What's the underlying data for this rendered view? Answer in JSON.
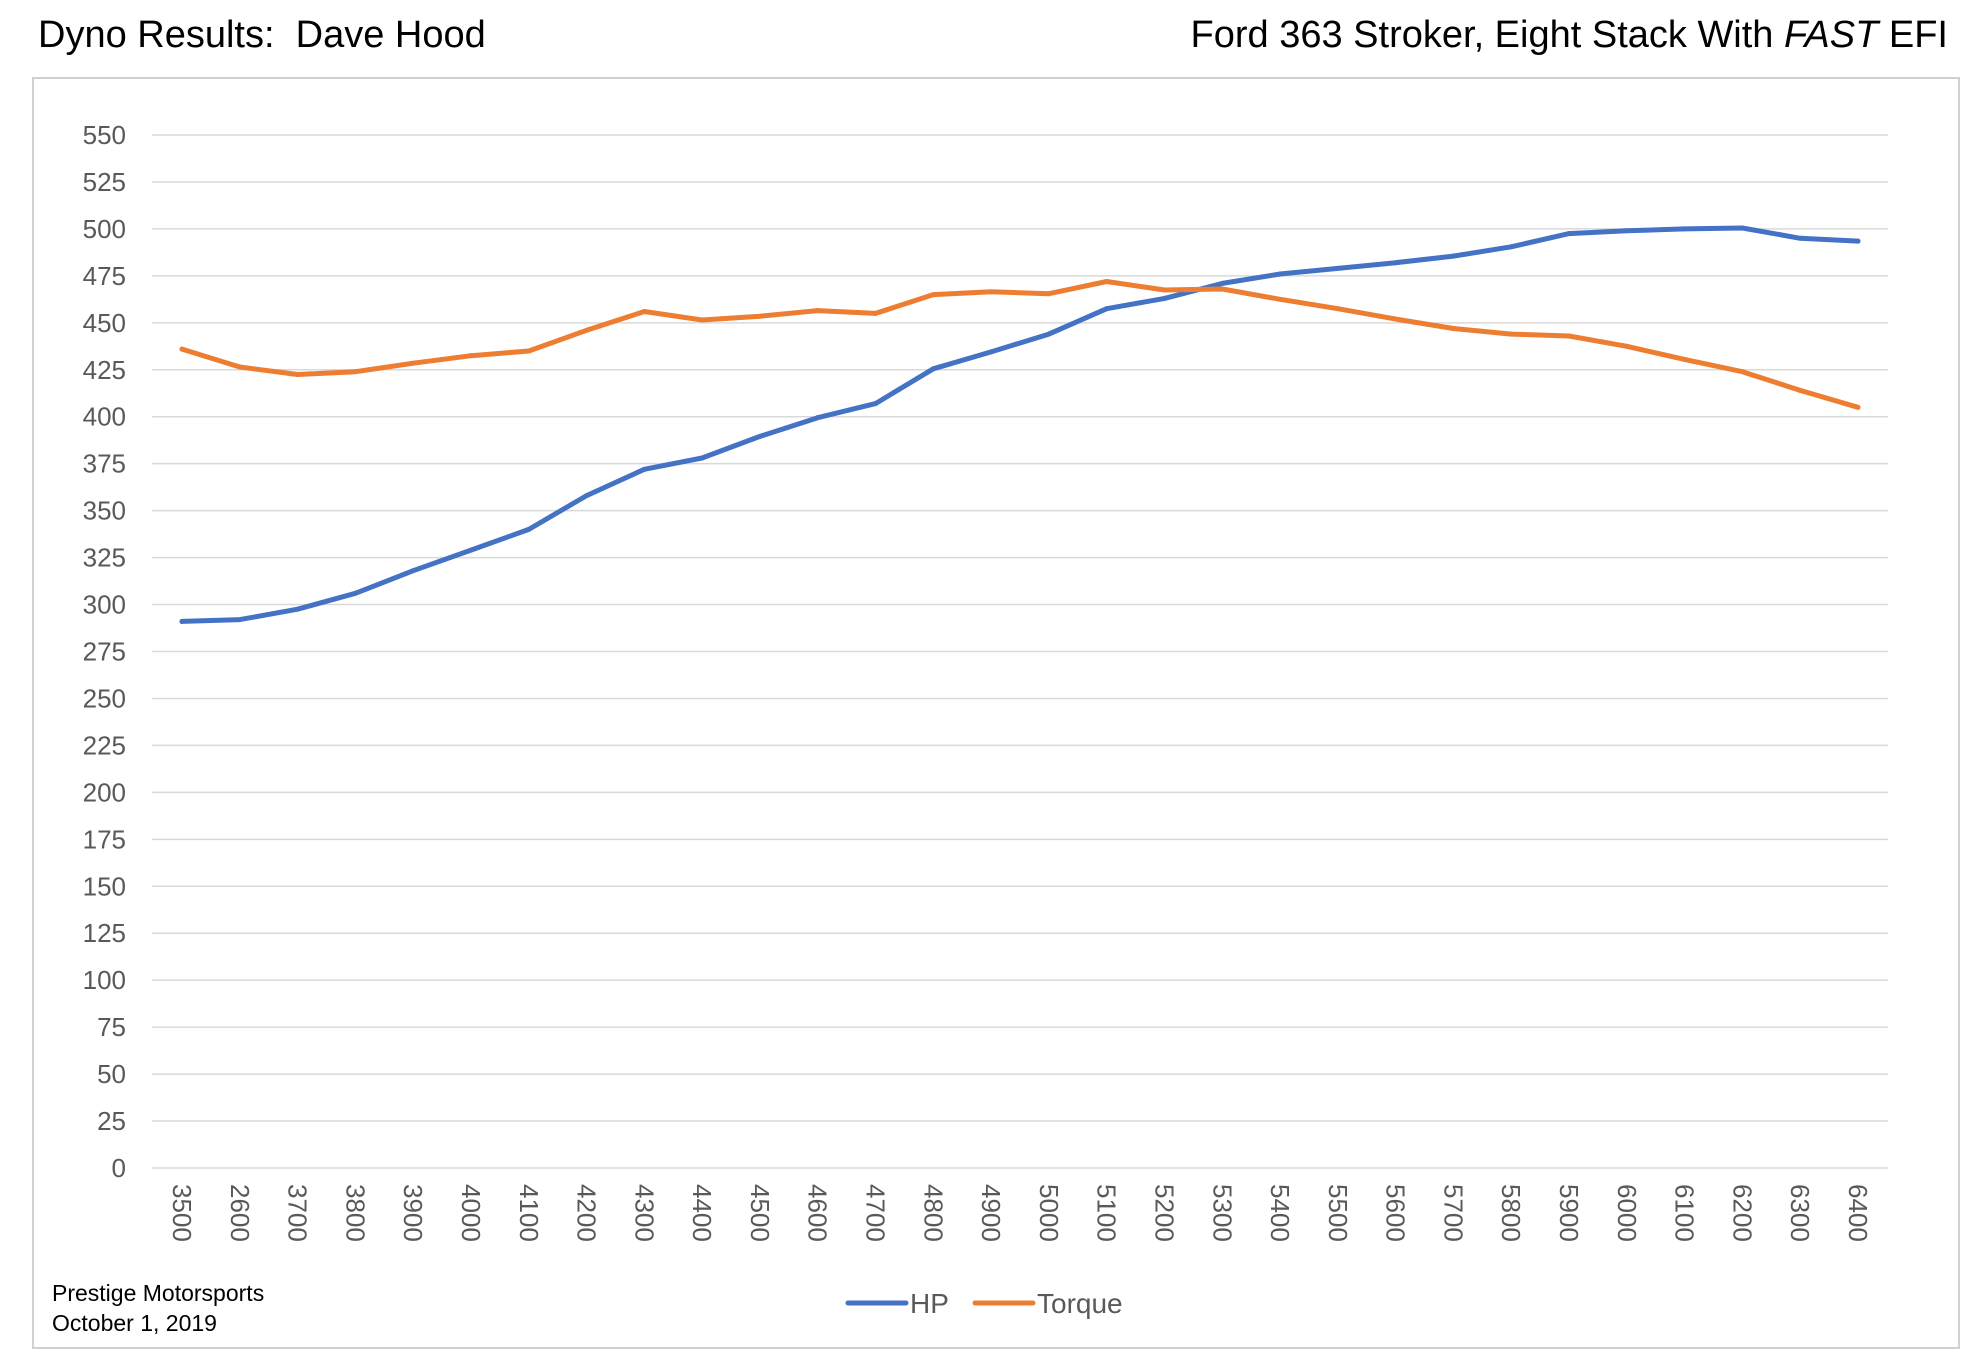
{
  "header": {
    "left_title": "Dyno Results:  Dave Hood",
    "right_title_prefix": "Ford 363 Stroker, Eight Stack With ",
    "right_title_emph": "FAST",
    "right_title_suffix": " EFI"
  },
  "footer": {
    "line1": "Prestige Motorsports",
    "line2": "October 1, 2019"
  },
  "colors": {
    "hp": "#4472c4",
    "torque": "#ed7d31",
    "grid": "#d9d9d9",
    "axis_text": "#595959"
  },
  "chart_data": {
    "type": "line",
    "title": "",
    "xlabel": "",
    "ylabel": "",
    "ylim": [
      0,
      550
    ],
    "y_ticks": [
      0,
      25,
      50,
      75,
      100,
      125,
      150,
      175,
      200,
      225,
      250,
      275,
      300,
      325,
      350,
      375,
      400,
      425,
      450,
      475,
      500,
      525,
      550
    ],
    "grid": true,
    "legend_position": "bottom",
    "categories": [
      "3500",
      "2600",
      "3700",
      "3800",
      "3900",
      "4000",
      "4100",
      "4200",
      "4300",
      "4400",
      "4500",
      "4600",
      "4700",
      "4800",
      "4900",
      "5000",
      "5100",
      "5200",
      "5300",
      "5400",
      "5500",
      "5600",
      "5700",
      "5800",
      "5900",
      "6000",
      "6100",
      "6200",
      "6300",
      "6400"
    ],
    "series": [
      {
        "name": "HP",
        "color": "#4472c4",
        "values": [
          291,
          292,
          297.5,
          306,
          318,
          329,
          340,
          358,
          372,
          378,
          389.5,
          399.5,
          407,
          425.5,
          434.5,
          444,
          457.5,
          463,
          471,
          476,
          479,
          482,
          485.5,
          490.5,
          497.5,
          499,
          500,
          500.5,
          495,
          493.5
        ]
      },
      {
        "name": "Torque",
        "color": "#ed7d31",
        "values": [
          436,
          426.5,
          422.5,
          424,
          428.5,
          432.5,
          435,
          446,
          456,
          451.5,
          453.5,
          456.5,
          455,
          465,
          466.5,
          465.5,
          472,
          467.5,
          468,
          462.5,
          457.5,
          452,
          447,
          444,
          443,
          437.5,
          430.5,
          424,
          414,
          405
        ]
      }
    ]
  }
}
